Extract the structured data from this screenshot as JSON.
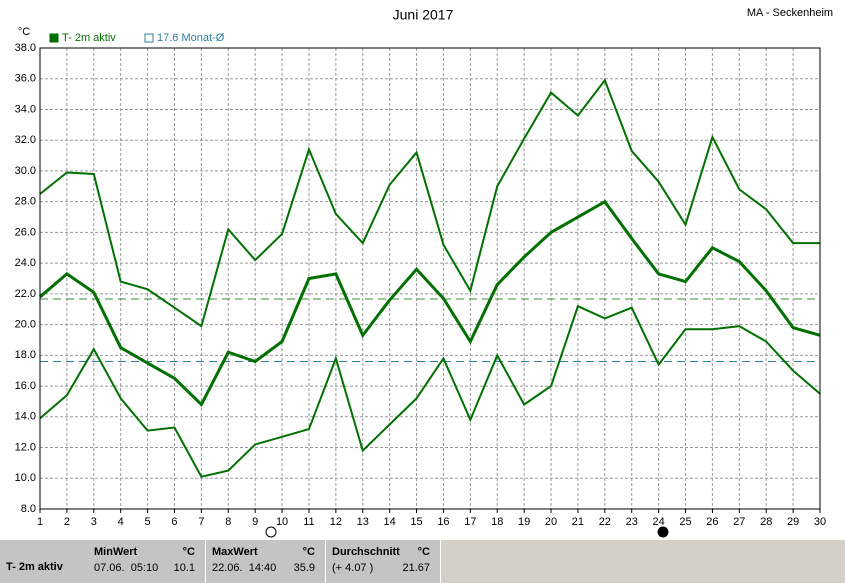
{
  "chart_data": {
    "type": "line",
    "title": "Juni 2017",
    "station": "MA - Seckenheim",
    "y_unit": "°C",
    "legend": [
      {
        "label": "T- 2m aktiv",
        "color": "#006e00",
        "style": "filled"
      },
      {
        "label": "17.6 Monat-Ø",
        "color": "#2f7f9f",
        "style": "hollow"
      }
    ],
    "x": [
      1,
      2,
      3,
      4,
      5,
      6,
      7,
      8,
      9,
      10,
      11,
      12,
      13,
      14,
      15,
      16,
      17,
      18,
      19,
      20,
      21,
      22,
      23,
      24,
      25,
      26,
      27,
      28,
      29,
      30
    ],
    "xlim": [
      1,
      30
    ],
    "xticks": [
      1,
      2,
      3,
      4,
      5,
      6,
      7,
      8,
      9,
      10,
      11,
      12,
      13,
      14,
      15,
      16,
      17,
      18,
      19,
      20,
      21,
      22,
      23,
      24,
      25,
      26,
      27,
      28,
      29,
      30
    ],
    "ylim": [
      8,
      38
    ],
    "yticks": [
      {
        "value": 8,
        "label": "8.0"
      },
      {
        "value": 10,
        "label": "10.0"
      },
      {
        "value": 12,
        "label": "12.0"
      },
      {
        "value": 14,
        "label": "14.0"
      },
      {
        "value": 16,
        "label": "16.0"
      },
      {
        "value": 18,
        "label": "18.0"
      },
      {
        "value": 20,
        "label": "20.0"
      },
      {
        "value": 22,
        "label": "22.0"
      },
      {
        "value": 24,
        "label": "24.0"
      },
      {
        "value": 26,
        "label": "26.0"
      },
      {
        "value": 28,
        "label": "28.0"
      },
      {
        "value": 30,
        "label": "30.0"
      },
      {
        "value": 32,
        "label": "32.0"
      },
      {
        "value": 34,
        "label": "34.0"
      },
      {
        "value": 36,
        "label": "36.0"
      },
      {
        "value": 38,
        "label": "38.0"
      }
    ],
    "grid": true,
    "series": [
      {
        "color": "#007000",
        "width": 2,
        "values": [
          28.5,
          29.9,
          29.8,
          22.8,
          22.3,
          21.1,
          19.9,
          26.2,
          24.2,
          25.9,
          31.4,
          27.2,
          25.3,
          29.1,
          31.2,
          25.2,
          22.2,
          29.0,
          32.1,
          35.1,
          33.6,
          35.9,
          31.3,
          29.3,
          26.5,
          32.2,
          28.8,
          27.5,
          25.3,
          25.3
        ]
      },
      {
        "color": "#007000",
        "width": 3,
        "values": [
          21.8,
          23.3,
          22.1,
          18.5,
          17.5,
          16.5,
          14.8,
          18.2,
          17.6,
          18.9,
          23.0,
          23.3,
          19.3,
          21.6,
          23.6,
          21.7,
          18.9,
          22.6,
          24.4,
          26.0,
          27.0,
          28.0,
          25.6,
          23.3,
          22.8,
          25.0,
          24.1,
          22.2,
          19.8,
          19.3
        ]
      },
      {
        "color": "#007000",
        "width": 2,
        "values": [
          13.9,
          15.4,
          18.4,
          15.2,
          13.1,
          13.3,
          10.1,
          10.5,
          12.2,
          12.7,
          13.2,
          17.8,
          11.8,
          13.5,
          15.2,
          17.8,
          13.8,
          18.0,
          14.8,
          16.0,
          21.2,
          20.4,
          21.1,
          17.4,
          19.7,
          19.7,
          19.9,
          18.9,
          17.0,
          15.5
        ]
      }
    ],
    "reference_lines": [
      {
        "value": 21.67,
        "color": "#3c8c3c"
      },
      {
        "value": 17.6,
        "color": "#2f7f9f"
      }
    ],
    "stats": {
      "title": "T- 2m aktiv",
      "columns": [
        {
          "header": "MinWert",
          "unit": "°C",
          "when": "07.06.  05:10",
          "value": 10.1
        },
        {
          "header": "MaxWert",
          "unit": "°C",
          "when": "22.06.  14:40",
          "value": 35.9
        },
        {
          "header": "Durchschnitt",
          "unit": "°C",
          "when": "(+ 4.07 )",
          "value": 21.67
        }
      ]
    }
  }
}
